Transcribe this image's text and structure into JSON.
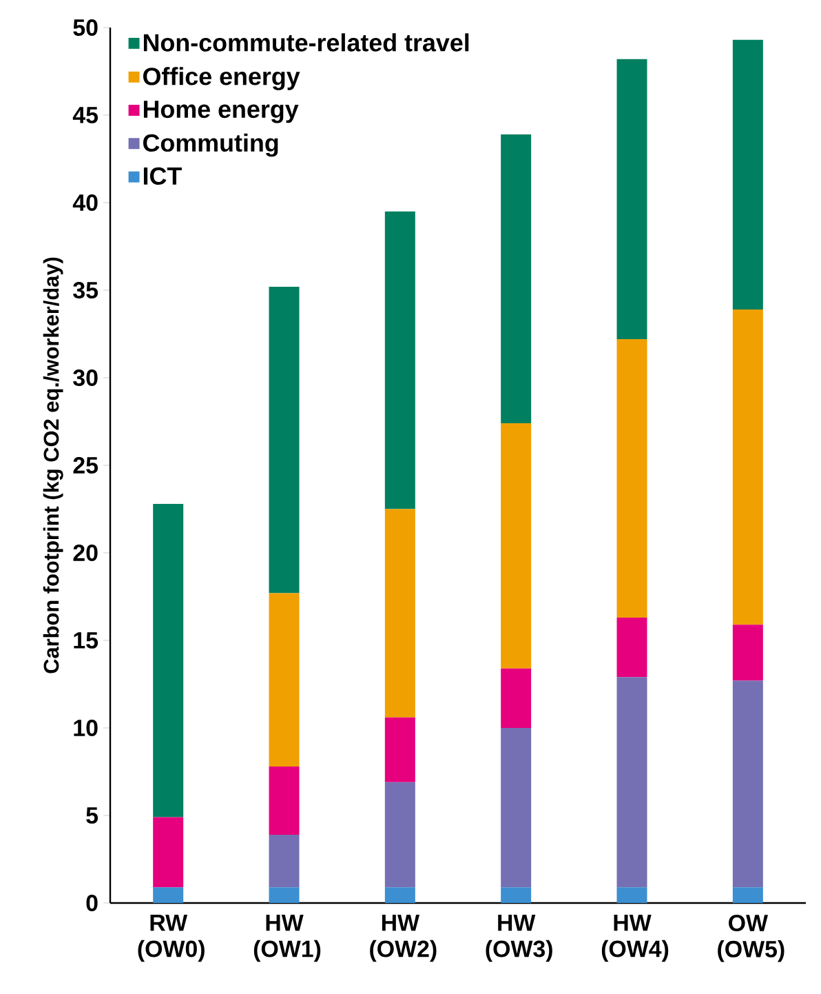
{
  "chart_data": {
    "type": "bar",
    "stacked": true,
    "ylabel": "Carbon footprint (kg CO2 eq./worker/day)",
    "categories": [
      "RW (OW0)",
      "HW (OW1)",
      "HW (OW2)",
      "HW (OW3)",
      "HW (OW4)",
      "OW (OW5)"
    ],
    "series": [
      {
        "name": "ICT",
        "color": "#3c8fd0",
        "values": [
          0.9,
          0.9,
          0.9,
          0.9,
          0.9,
          0.9
        ]
      },
      {
        "name": "Commuting",
        "color": "#7570b3",
        "values": [
          0,
          3.0,
          6.0,
          9.1,
          12.0,
          11.8
        ]
      },
      {
        "name": "Home energy",
        "color": "#e6007e",
        "values": [
          4.0,
          3.9,
          3.7,
          3.4,
          3.4,
          3.2
        ]
      },
      {
        "name": "Office energy",
        "color": "#f0a000",
        "values": [
          0,
          9.9,
          11.9,
          14.0,
          15.9,
          18.0
        ]
      },
      {
        "name": "Non-commute-related travel",
        "color": "#008060",
        "values": [
          17.9,
          17.5,
          17.0,
          16.5,
          16.0,
          15.4
        ]
      }
    ],
    "ylim": [
      0,
      50
    ],
    "yticks": [
      0,
      5,
      10,
      15,
      20,
      25,
      30,
      35,
      40,
      45,
      50
    ],
    "legend": "top left"
  }
}
